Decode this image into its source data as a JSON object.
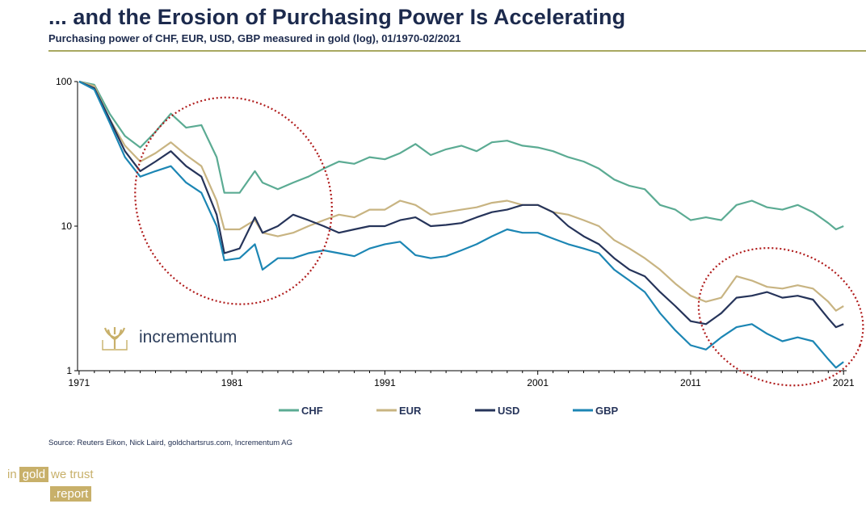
{
  "header": {
    "title": "... and the Erosion of Purchasing Power Is Accelerating",
    "subtitle": "Purchasing power of CHF, EUR, USD, GBP measured in gold (log), 01/1970-02/2021"
  },
  "source": "Source: Reuters Eikon, Nick Laird, goldchartsrus.com, Incrementum AG",
  "logo": {
    "name": "incrementum"
  },
  "footer": {
    "word1": "in",
    "word2": "gold",
    "word3": "we trust",
    "word4": ".report"
  },
  "colors": {
    "CHF": "#5bab93",
    "EUR": "#c8b482",
    "USD": "#26345a",
    "GBP": "#1c86b4",
    "circle": "#b01c1c"
  },
  "chart_data": {
    "type": "line",
    "scale": "log",
    "title": "Purchasing power of CHF, EUR, USD, GBP measured in gold (log), 01/1970-02/2021",
    "xlabel": "",
    "ylabel": "",
    "xlim": [
      1970.9,
      2021.2
    ],
    "ylim": [
      1,
      100
    ],
    "x_ticks": [
      1971,
      1981,
      1991,
      2001,
      2011,
      2021
    ],
    "y_ticks": [
      1,
      10,
      100
    ],
    "legend_position": "bottom",
    "annotations": [
      "dotted ellipse around 1975-1984",
      "dotted ellipse around 2013-2021"
    ],
    "series": [
      {
        "name": "CHF",
        "points": [
          [
            1971,
            100
          ],
          [
            1972,
            95
          ],
          [
            1973,
            60
          ],
          [
            1974,
            42
          ],
          [
            1975,
            35
          ],
          [
            1976,
            45
          ],
          [
            1977,
            60
          ],
          [
            1978,
            48
          ],
          [
            1979,
            50
          ],
          [
            1980,
            30
          ],
          [
            1980.5,
            17
          ],
          [
            1981.5,
            17
          ],
          [
            1982.5,
            24
          ],
          [
            1983,
            20
          ],
          [
            1984,
            18
          ],
          [
            1985,
            20
          ],
          [
            1986,
            22
          ],
          [
            1987,
            25
          ],
          [
            1988,
            28
          ],
          [
            1989,
            27
          ],
          [
            1990,
            30
          ],
          [
            1991,
            29
          ],
          [
            1992,
            32
          ],
          [
            1993,
            37
          ],
          [
            1994,
            31
          ],
          [
            1995,
            34
          ],
          [
            1996,
            36
          ],
          [
            1997,
            33
          ],
          [
            1998,
            38
          ],
          [
            1999,
            39
          ],
          [
            2000,
            36
          ],
          [
            2001,
            35
          ],
          [
            2002,
            33
          ],
          [
            2003,
            30
          ],
          [
            2004,
            28
          ],
          [
            2005,
            25
          ],
          [
            2006,
            21
          ],
          [
            2007,
            19
          ],
          [
            2008,
            18
          ],
          [
            2009,
            14
          ],
          [
            2010,
            13
          ],
          [
            2011,
            11
          ],
          [
            2012,
            11.5
          ],
          [
            2013,
            11
          ],
          [
            2014,
            14
          ],
          [
            2015,
            15
          ],
          [
            2016,
            13.5
          ],
          [
            2017,
            13
          ],
          [
            2018,
            14
          ],
          [
            2019,
            12.5
          ],
          [
            2020,
            10.5
          ],
          [
            2020.5,
            9.5
          ],
          [
            2021,
            10
          ]
        ]
      },
      {
        "name": "EUR",
        "points": [
          [
            1971,
            100
          ],
          [
            1972,
            93
          ],
          [
            1973,
            55
          ],
          [
            1974,
            36
          ],
          [
            1975,
            28
          ],
          [
            1976,
            32
          ],
          [
            1977,
            38
          ],
          [
            1978,
            31
          ],
          [
            1979,
            26
          ],
          [
            1980,
            15
          ],
          [
            1980.5,
            9.5
          ],
          [
            1981.5,
            9.5
          ],
          [
            1982.5,
            11
          ],
          [
            1983,
            9
          ],
          [
            1984,
            8.5
          ],
          [
            1985,
            9
          ],
          [
            1986,
            10
          ],
          [
            1987,
            11
          ],
          [
            1988,
            12
          ],
          [
            1989,
            11.5
          ],
          [
            1990,
            13
          ],
          [
            1991,
            13
          ],
          [
            1992,
            15
          ],
          [
            1993,
            14
          ],
          [
            1994,
            12
          ],
          [
            1995,
            12.5
          ],
          [
            1996,
            13
          ],
          [
            1997,
            13.5
          ],
          [
            1998,
            14.5
          ],
          [
            1999,
            15
          ],
          [
            2000,
            14
          ],
          [
            2001,
            14
          ],
          [
            2002,
            12.5
          ],
          [
            2003,
            12
          ],
          [
            2004,
            11
          ],
          [
            2005,
            10
          ],
          [
            2006,
            8
          ],
          [
            2007,
            7
          ],
          [
            2008,
            6
          ],
          [
            2009,
            5
          ],
          [
            2010,
            4
          ],
          [
            2011,
            3.3
          ],
          [
            2012,
            3
          ],
          [
            2013,
            3.2
          ],
          [
            2014,
            4.5
          ],
          [
            2015,
            4.2
          ],
          [
            2016,
            3.8
          ],
          [
            2017,
            3.7
          ],
          [
            2018,
            3.9
          ],
          [
            2019,
            3.7
          ],
          [
            2020,
            3
          ],
          [
            2020.5,
            2.6
          ],
          [
            2021,
            2.8
          ]
        ]
      },
      {
        "name": "USD",
        "points": [
          [
            1971,
            100
          ],
          [
            1972,
            90
          ],
          [
            1973,
            55
          ],
          [
            1974,
            33
          ],
          [
            1975,
            24
          ],
          [
            1976,
            28
          ],
          [
            1977,
            33
          ],
          [
            1978,
            26
          ],
          [
            1979,
            22
          ],
          [
            1980,
            12
          ],
          [
            1980.5,
            6.5
          ],
          [
            1981.5,
            7
          ],
          [
            1982.5,
            11.5
          ],
          [
            1983,
            9
          ],
          [
            1984,
            10
          ],
          [
            1985,
            12
          ],
          [
            1986,
            11
          ],
          [
            1987,
            10
          ],
          [
            1988,
            9
          ],
          [
            1989,
            9.5
          ],
          [
            1990,
            10
          ],
          [
            1991,
            10
          ],
          [
            1992,
            11
          ],
          [
            1993,
            11.5
          ],
          [
            1994,
            10
          ],
          [
            1995,
            10.2
          ],
          [
            1996,
            10.5
          ],
          [
            1997,
            11.5
          ],
          [
            1998,
            12.5
          ],
          [
            1999,
            13
          ],
          [
            2000,
            14
          ],
          [
            2001,
            14
          ],
          [
            2002,
            12.5
          ],
          [
            2003,
            10
          ],
          [
            2004,
            8.5
          ],
          [
            2005,
            7.5
          ],
          [
            2006,
            6
          ],
          [
            2007,
            5
          ],
          [
            2008,
            4.5
          ],
          [
            2009,
            3.5
          ],
          [
            2010,
            2.8
          ],
          [
            2011,
            2.2
          ],
          [
            2012,
            2.1
          ],
          [
            2013,
            2.5
          ],
          [
            2014,
            3.2
          ],
          [
            2015,
            3.3
          ],
          [
            2016,
            3.5
          ],
          [
            2017,
            3.2
          ],
          [
            2018,
            3.3
          ],
          [
            2019,
            3.1
          ],
          [
            2020,
            2.3
          ],
          [
            2020.5,
            2
          ],
          [
            2021,
            2.1
          ]
        ]
      },
      {
        "name": "GBP",
        "points": [
          [
            1971,
            100
          ],
          [
            1972,
            88
          ],
          [
            1973,
            52
          ],
          [
            1974,
            30
          ],
          [
            1975,
            22
          ],
          [
            1976,
            24
          ],
          [
            1977,
            26
          ],
          [
            1978,
            20
          ],
          [
            1979,
            17
          ],
          [
            1980,
            10
          ],
          [
            1980.5,
            5.8
          ],
          [
            1981.5,
            6
          ],
          [
            1982.5,
            7.5
          ],
          [
            1983,
            5
          ],
          [
            1984,
            6
          ],
          [
            1985,
            6
          ],
          [
            1986,
            6.5
          ],
          [
            1987,
            6.8
          ],
          [
            1988,
            6.5
          ],
          [
            1989,
            6.2
          ],
          [
            1990,
            7
          ],
          [
            1991,
            7.5
          ],
          [
            1992,
            7.8
          ],
          [
            1993,
            6.3
          ],
          [
            1994,
            6
          ],
          [
            1995,
            6.2
          ],
          [
            1996,
            6.8
          ],
          [
            1997,
            7.5
          ],
          [
            1998,
            8.5
          ],
          [
            1999,
            9.5
          ],
          [
            2000,
            9
          ],
          [
            2001,
            9
          ],
          [
            2002,
            8.2
          ],
          [
            2003,
            7.5
          ],
          [
            2004,
            7
          ],
          [
            2005,
            6.5
          ],
          [
            2006,
            5
          ],
          [
            2007,
            4.2
          ],
          [
            2008,
            3.5
          ],
          [
            2009,
            2.5
          ],
          [
            2010,
            1.9
          ],
          [
            2011,
            1.5
          ],
          [
            2012,
            1.4
          ],
          [
            2013,
            1.7
          ],
          [
            2014,
            2
          ],
          [
            2015,
            2.1
          ],
          [
            2016,
            1.8
          ],
          [
            2017,
            1.6
          ],
          [
            2018,
            1.7
          ],
          [
            2019,
            1.6
          ],
          [
            2020,
            1.2
          ],
          [
            2020.5,
            1.05
          ],
          [
            2021,
            1.15
          ]
        ]
      }
    ]
  }
}
